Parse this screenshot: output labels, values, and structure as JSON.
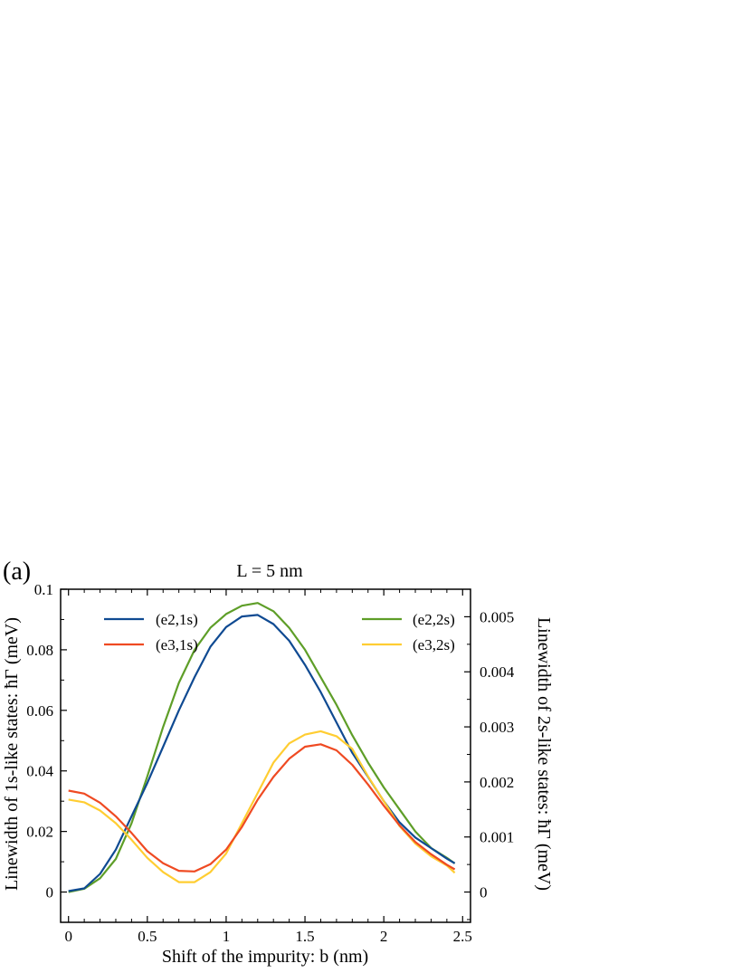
{
  "chart_data": {
    "type": "line",
    "panel_label": "(a)",
    "title": "L = 5 nm",
    "xlabel": "Shift of the impurity: b (nm)",
    "ylabel_left": "Linewidth of 1s-like states: ħΓ (meV)",
    "ylabel_right": "Linewidth of 2s-like states: ħΓ (meV)",
    "xlim": [
      -0.05,
      2.55
    ],
    "ylim_left": [
      -0.01,
      0.1
    ],
    "ylim_right": [
      -0.00055,
      0.0055
    ],
    "x_ticks": [
      "0",
      "0.5",
      "1",
      "1.5",
      "2",
      "2.5"
    ],
    "x_tick_values": [
      0,
      0.5,
      1,
      1.5,
      2,
      2.5
    ],
    "y_left_ticks": [
      "0",
      "0.02",
      "0.04",
      "0.06",
      "0.08",
      "0.1"
    ],
    "y_left_tick_values": [
      0,
      0.02,
      0.04,
      0.06,
      0.08,
      0.1
    ],
    "y_right_ticks": [
      "0",
      "0.001",
      "0.002",
      "0.003",
      "0.004",
      "0.005"
    ],
    "y_right_tick_values": [
      0,
      0.001,
      0.002,
      0.003,
      0.004,
      0.005
    ],
    "legend": {
      "left": "top-left",
      "right": "top-right"
    },
    "grid": false,
    "x": [
      0,
      0.1,
      0.2,
      0.3,
      0.4,
      0.5,
      0.6,
      0.7,
      0.8,
      0.9,
      1.0,
      1.1,
      1.2,
      1.3,
      1.4,
      1.5,
      1.6,
      1.7,
      1.8,
      1.9,
      2.0,
      2.1,
      2.2,
      2.3,
      2.4,
      2.45
    ],
    "series": [
      {
        "name": "(e2,1s)",
        "axis": "left",
        "color": "#0f4a92",
        "values": [
          0.0003,
          0.0012,
          0.006,
          0.014,
          0.025,
          0.036,
          0.048,
          0.06,
          0.071,
          0.081,
          0.0875,
          0.091,
          0.0915,
          0.0885,
          0.083,
          0.075,
          0.066,
          0.056,
          0.046,
          0.038,
          0.03,
          0.023,
          0.018,
          0.0145,
          0.011,
          0.0095
        ]
      },
      {
        "name": "(e3,1s)",
        "axis": "left",
        "color": "#ef4a22",
        "values": [
          0.0335,
          0.0325,
          0.0295,
          0.025,
          0.0195,
          0.0135,
          0.0095,
          0.007,
          0.0068,
          0.0092,
          0.014,
          0.0215,
          0.0305,
          0.038,
          0.044,
          0.048,
          0.0488,
          0.0468,
          0.042,
          0.0355,
          0.0285,
          0.022,
          0.0165,
          0.0125,
          0.009,
          0.0075
        ]
      },
      {
        "name": "(e2,2s)",
        "axis": "right",
        "color": "#5e9e28",
        "values": [
          0.0,
          6e-05,
          0.00025,
          0.0006,
          0.00125,
          0.0021,
          0.003,
          0.0038,
          0.0044,
          0.0048,
          0.00505,
          0.0052,
          0.00525,
          0.0051,
          0.0048,
          0.0044,
          0.0039,
          0.0034,
          0.00285,
          0.00235,
          0.0019,
          0.0015,
          0.0011,
          0.0008,
          0.00062,
          0.00052
        ]
      },
      {
        "name": "(e3,2s)",
        "axis": "right",
        "color": "#ffcd32",
        "values": [
          0.00168,
          0.00163,
          0.00148,
          0.00125,
          0.00095,
          0.00062,
          0.00036,
          0.00018,
          0.00018,
          0.00036,
          0.0007,
          0.00125,
          0.0018,
          0.00235,
          0.0027,
          0.00286,
          0.00292,
          0.00283,
          0.0026,
          0.0021,
          0.00165,
          0.0012,
          0.00088,
          0.00065,
          0.00048,
          0.00035
        ]
      }
    ]
  }
}
